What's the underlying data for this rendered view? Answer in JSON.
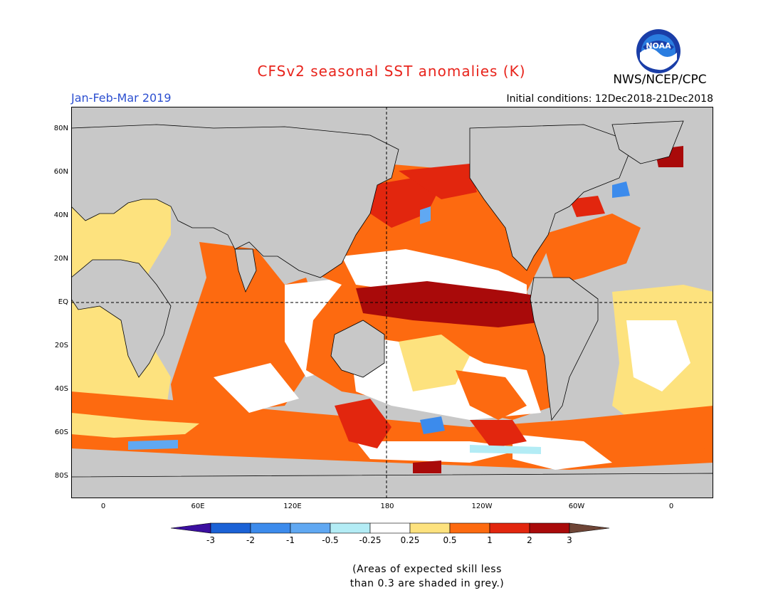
{
  "header": {
    "title": "CFSv2 seasonal SST anomalies (K)",
    "agency": "NWS/NCEP/CPC",
    "logo_text": "NOAA",
    "season": "Jan-Feb-Mar 2019",
    "initial_conditions": "Initial conditions: 12Dec2018-21Dec2018"
  },
  "map": {
    "lat_labels": [
      "80N",
      "60N",
      "40N",
      "20N",
      "EQ",
      "20S",
      "40S",
      "60S",
      "80S"
    ],
    "lon_labels": [
      "0",
      "60E",
      "120E",
      "180",
      "120W",
      "60W",
      "0"
    ]
  },
  "colorbar": {
    "labels": [
      "-3",
      "-2",
      "-1",
      "-0.5",
      "-0.25",
      "0.25",
      "0.5",
      "1",
      "2",
      "3"
    ],
    "colors": [
      "#3b0fa0",
      "#1b62d6",
      "#3c8bec",
      "#60a8f2",
      "#b3ecf5",
      "#ffffff",
      "#fde27e",
      "#fd6a10",
      "#e2260e",
      "#a90a0a",
      "#6e4536"
    ]
  },
  "note": {
    "line1": "(Areas of expected skill less",
    "line2": "than 0.3 are shaded in grey.)"
  }
}
